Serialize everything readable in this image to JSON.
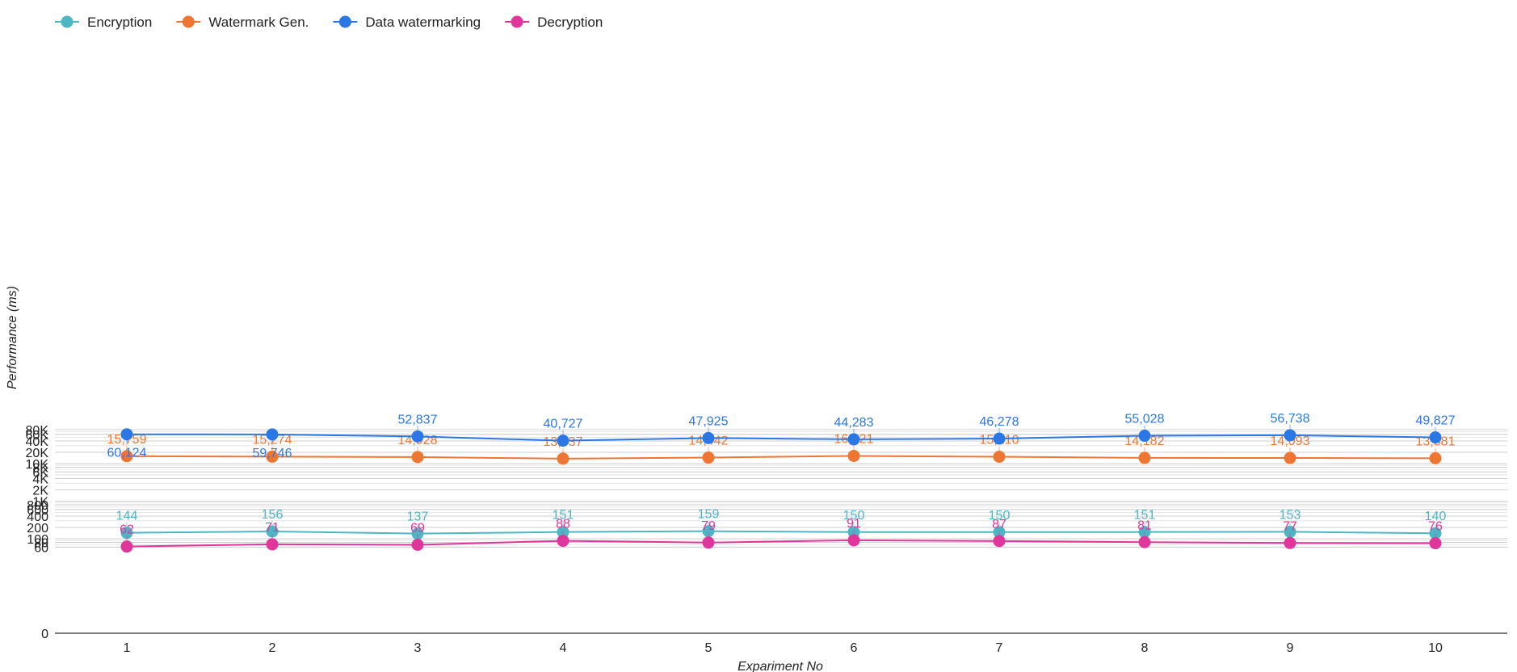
{
  "chart_data": {
    "type": "line",
    "title": "",
    "xlabel": "Expariment No",
    "ylabel": "Performance (ms)",
    "y_scale": "log",
    "y_ticks": [
      {
        "value": 0,
        "label": "0"
      },
      {
        "value": 60,
        "label": "60"
      },
      {
        "value": 80,
        "label": "80"
      },
      {
        "value": 100,
        "label": "100"
      },
      {
        "value": 200,
        "label": "200"
      },
      {
        "value": 400,
        "label": "400"
      },
      {
        "value": 600,
        "label": "600"
      },
      {
        "value": 800,
        "label": "800"
      },
      {
        "value": 1000,
        "label": "1K"
      },
      {
        "value": 2000,
        "label": "2K"
      },
      {
        "value": 4000,
        "label": "4K"
      },
      {
        "value": 6000,
        "label": "6K"
      },
      {
        "value": 8000,
        "label": "8K"
      },
      {
        "value": 10000,
        "label": "10K"
      },
      {
        "value": 20000,
        "label": "20K"
      },
      {
        "value": 40000,
        "label": "40K"
      },
      {
        "value": 60000,
        "label": "60K"
      },
      {
        "value": 80000,
        "label": "80K"
      }
    ],
    "ylim": [
      0,
      80000
    ],
    "categories": [
      "1",
      "2",
      "3",
      "4",
      "5",
      "6",
      "7",
      "8",
      "9",
      "10"
    ],
    "grid": true,
    "legend_position": "top-left",
    "series": [
      {
        "name": "Encryption",
        "color": "#4cb6c5",
        "values": [
          144,
          156,
          137,
          151,
          159,
          150,
          150,
          151,
          153,
          140
        ],
        "labels": [
          "144",
          "156",
          "137",
          "151",
          "159",
          "150",
          "150",
          "151",
          "153",
          "140"
        ],
        "label_side": [
          "above",
          "above",
          "above",
          "above",
          "above",
          "above",
          "above",
          "above",
          "above",
          "above"
        ]
      },
      {
        "name": "Watermark Gen.",
        "color": "#ed7633",
        "values": [
          15759,
          15274,
          14928,
          13537,
          14442,
          16021,
          15210,
          14182,
          14093,
          13881
        ],
        "labels": [
          "15,759",
          "15,274",
          "14,928",
          "13,537",
          "14,442",
          "16,021",
          "15,210",
          "14,182",
          "14,093",
          "13,881"
        ],
        "label_side": [
          "above",
          "above",
          "above",
          "above",
          "above",
          "above",
          "above",
          "above",
          "above",
          "above"
        ]
      },
      {
        "name": "Data watermarking",
        "color": "#2b78e4",
        "values": [
          60124,
          59746,
          52837,
          40727,
          47925,
          44283,
          46278,
          55028,
          56738,
          49827
        ],
        "labels": [
          "60,124",
          "59,746",
          "52,837",
          "40,727",
          "47,925",
          "44,283",
          "46,278",
          "55,028",
          "56,738",
          "49,827"
        ],
        "label_side": [
          "below",
          "below",
          "above",
          "above",
          "above",
          "above",
          "above",
          "above",
          "above",
          "above"
        ]
      },
      {
        "name": "Decryption",
        "color": "#e0359b",
        "values": [
          62,
          71,
          69,
          88,
          79,
          91,
          87,
          81,
          77,
          76
        ],
        "labels": [
          "62",
          "71",
          "69",
          "88",
          "79",
          "91",
          "87",
          "81",
          "77",
          "76"
        ],
        "label_side": [
          "above",
          "above",
          "above",
          "above",
          "above",
          "above",
          "above",
          "above",
          "above",
          "above"
        ]
      }
    ]
  }
}
